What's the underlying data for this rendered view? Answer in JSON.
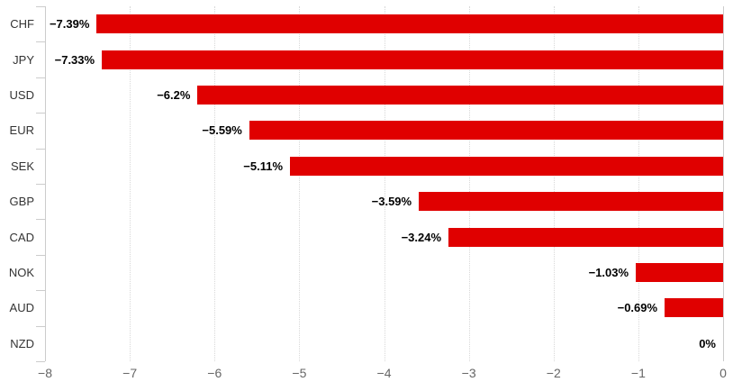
{
  "chart_data": {
    "type": "bar",
    "orientation": "horizontal",
    "title": "",
    "categories": [
      "CHF",
      "JPY",
      "USD",
      "EUR",
      "SEK",
      "GBP",
      "CAD",
      "NOK",
      "AUD",
      "NZD"
    ],
    "values": [
      -7.39,
      -7.33,
      -6.2,
      -5.59,
      -5.11,
      -3.59,
      -3.24,
      -1.03,
      -0.69,
      0
    ],
    "data_labels": [
      "−7.39%",
      "−7.33%",
      "−6.2%",
      "−5.59%",
      "−5.11%",
      "−3.59%",
      "−3.24%",
      "−1.03%",
      "−0.69%",
      "0%"
    ],
    "xlim": [
      -8,
      0
    ],
    "x_ticks": [
      -8,
      -7,
      -6,
      -5,
      -4,
      -3,
      -2,
      -1,
      0
    ],
    "x_tick_labels": [
      "−8",
      "−7",
      "−6",
      "−5",
      "−4",
      "−3",
      "−2",
      "−1",
      "0"
    ],
    "grid": "vertical-dotted",
    "legend": "none",
    "colors": {
      "bar": "#e00000",
      "value_label": "#000000",
      "category_label": "#333333",
      "axis_line": "#cccccc",
      "gridline": "#d8d8d8",
      "tick_label": "#666666",
      "background": "#ffffff"
    }
  }
}
